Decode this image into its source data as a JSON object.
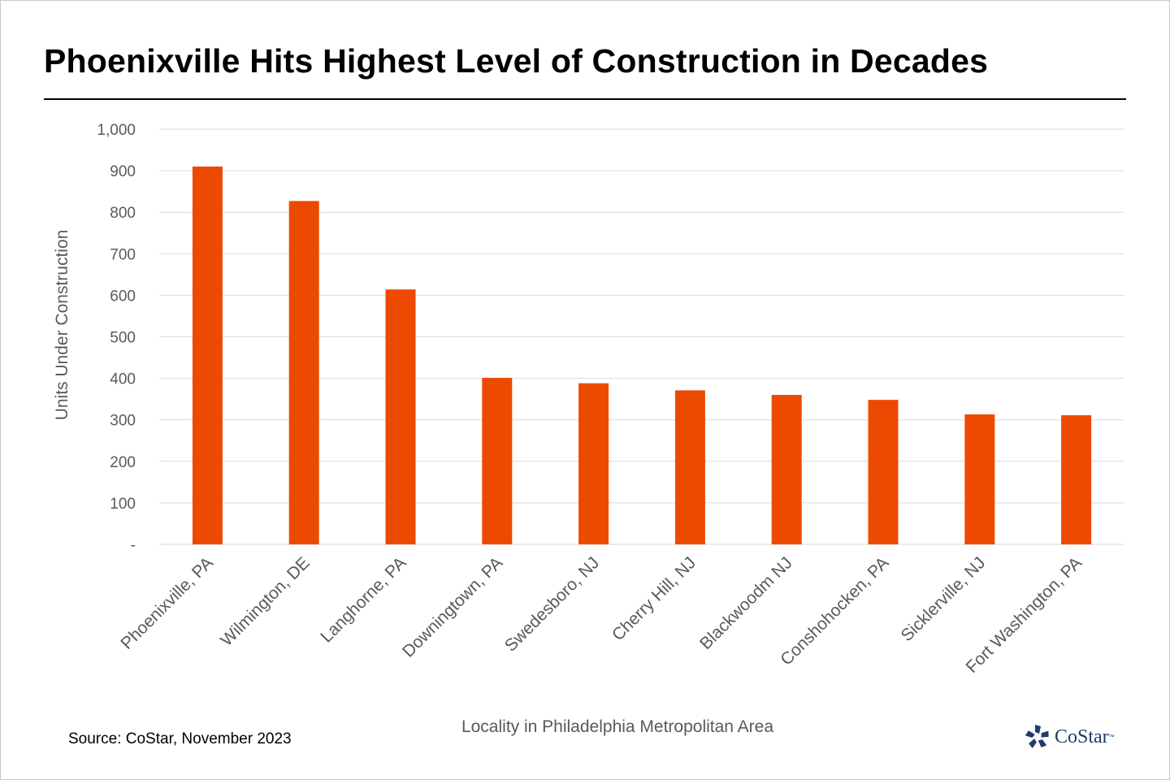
{
  "title": "Phoenixville Hits Highest Level of Construction in Decades",
  "source": "Source: CoStar, November 2023",
  "logo": {
    "text": "CoStar",
    "tm": "™",
    "color": "#1f3c6b"
  },
  "chart_data": {
    "type": "bar",
    "categories": [
      "Phoenixville, PA",
      "Wilmington, DE",
      "Langhorne, PA",
      "Downingtown, PA",
      "Swedesboro, NJ",
      "Cherry Hill, NJ",
      "Blackwoodm NJ",
      "Conshohocken, PA",
      "Sicklerville, NJ",
      "Fort Washington, PA"
    ],
    "values": [
      910,
      827,
      614,
      401,
      388,
      371,
      360,
      348,
      313,
      311
    ],
    "xlabel": "Locality in Philadelphia Metropolitan Area",
    "ylabel": "Units Under Construction",
    "ylim": [
      0,
      1000
    ],
    "yticks": [
      0,
      100,
      200,
      300,
      400,
      500,
      600,
      700,
      800,
      900,
      1000
    ],
    "ytick_labels": [
      "-",
      "100",
      "200",
      "300",
      "400",
      "500",
      "600",
      "700",
      "800",
      "900",
      "1,000"
    ],
    "grid": true,
    "legend": "none",
    "bar_color": "#ec4a00",
    "gridline_color": "#d9d9d9",
    "axis_text_color": "#595959"
  }
}
